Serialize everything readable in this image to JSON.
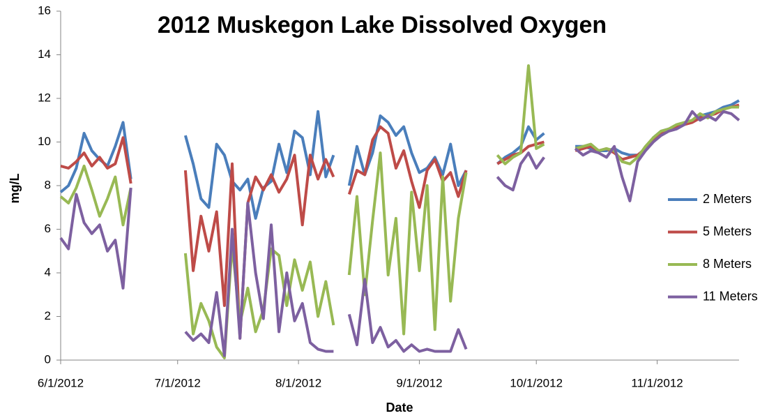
{
  "chart_data": {
    "type": "line",
    "title": "2012 Muskegon Lake Dissolved Oxygen",
    "x_label": "Date",
    "y_label": "mg/L",
    "x": [
      "6/1/2012",
      "6/3/2012",
      "6/5/2012",
      "6/7/2012",
      "6/9/2012",
      "6/11/2012",
      "6/13/2012",
      "6/15/2012",
      "6/17/2012",
      "6/19/2012",
      "6/21/2012",
      "6/23/2012",
      "6/25/2012",
      "6/27/2012",
      "6/29/2012",
      "7/1/2012",
      "7/3/2012",
      "7/5/2012",
      "7/7/2012",
      "7/9/2012",
      "7/11/2012",
      "7/13/2012",
      "7/15/2012",
      "7/17/2012",
      "7/19/2012",
      "7/21/2012",
      "7/23/2012",
      "7/25/2012",
      "7/27/2012",
      "7/29/2012",
      "7/31/2012",
      "8/2/2012",
      "8/4/2012",
      "8/6/2012",
      "8/8/2012",
      "8/10/2012",
      "8/12/2012",
      "8/14/2012",
      "8/16/2012",
      "8/18/2012",
      "8/20/2012",
      "8/22/2012",
      "8/24/2012",
      "8/26/2012",
      "8/28/2012",
      "8/30/2012",
      "9/1/2012",
      "9/3/2012",
      "9/5/2012",
      "9/7/2012",
      "9/9/2012",
      "9/11/2012",
      "9/13/2012",
      "9/15/2012",
      "9/17/2012",
      "9/19/2012",
      "9/21/2012",
      "9/23/2012",
      "9/25/2012",
      "9/27/2012",
      "9/29/2012",
      "10/1/2012",
      "10/3/2012",
      "10/5/2012",
      "10/7/2012",
      "10/9/2012",
      "10/11/2012",
      "10/13/2012",
      "10/15/2012",
      "10/17/2012",
      "10/19/2012",
      "10/21/2012",
      "10/23/2012",
      "10/25/2012",
      "10/27/2012",
      "10/29/2012",
      "10/31/2012",
      "11/2/2012",
      "11/4/2012",
      "11/6/2012",
      "11/8/2012",
      "11/10/2012",
      "11/12/2012",
      "11/14/2012",
      "11/16/2012",
      "11/18/2012",
      "11/20/2012",
      "11/22/2012"
    ],
    "series": [
      {
        "name": "2 Meters",
        "color": "#4a7ebb",
        "values": [
          7.7,
          8.0,
          8.8,
          10.4,
          9.6,
          9.2,
          8.9,
          9.8,
          10.9,
          8.3,
          null,
          null,
          null,
          null,
          null,
          null,
          10.3,
          9.0,
          7.4,
          7.0,
          9.9,
          9.4,
          8.2,
          7.8,
          8.3,
          6.5,
          7.9,
          8.2,
          9.9,
          8.6,
          10.5,
          10.2,
          8.5,
          11.4,
          8.4,
          9.4,
          null,
          8.0,
          9.8,
          8.5,
          9.5,
          11.2,
          10.9,
          10.3,
          10.7,
          9.5,
          8.6,
          8.8,
          9.3,
          8.5,
          9.9,
          8.0,
          8.7,
          null,
          null,
          null,
          9.0,
          9.3,
          9.5,
          9.8,
          10.7,
          10.1,
          10.4,
          null,
          null,
          null,
          9.8,
          9.8,
          9.7,
          9.6,
          9.6,
          9.7,
          9.5,
          9.4,
          9.4,
          9.7,
          10.2,
          10.5,
          10.6,
          10.7,
          10.8,
          11.0,
          11.2,
          11.3,
          11.4,
          11.6,
          11.7,
          11.9
        ]
      },
      {
        "name": "5 Meters",
        "color": "#be4b48",
        "values": [
          8.9,
          8.8,
          9.1,
          9.5,
          8.9,
          9.3,
          8.8,
          9.0,
          10.2,
          8.1,
          null,
          null,
          null,
          null,
          null,
          null,
          8.7,
          4.1,
          6.6,
          5.0,
          6.8,
          2.5,
          9.0,
          1.0,
          7.2,
          8.4,
          7.8,
          8.5,
          7.7,
          8.3,
          9.4,
          6.2,
          9.4,
          8.3,
          9.2,
          8.4,
          null,
          7.6,
          8.7,
          8.5,
          10.1,
          10.7,
          10.4,
          8.8,
          9.6,
          8.2,
          7.0,
          8.7,
          9.2,
          8.2,
          8.6,
          7.5,
          8.7,
          null,
          null,
          null,
          9.0,
          9.2,
          9.4,
          9.5,
          9.8,
          9.9,
          10.0,
          null,
          null,
          null,
          9.6,
          9.7,
          9.8,
          9.6,
          9.7,
          9.5,
          9.2,
          9.3,
          9.4,
          9.7,
          10.1,
          10.4,
          10.6,
          10.7,
          10.8,
          10.9,
          11.1,
          11.2,
          11.3,
          11.5,
          11.6,
          11.7
        ]
      },
      {
        "name": "8 Meters",
        "color": "#98b954",
        "values": [
          7.5,
          7.2,
          7.9,
          8.9,
          7.8,
          6.6,
          7.4,
          8.4,
          6.2,
          7.9,
          null,
          null,
          null,
          null,
          null,
          null,
          4.9,
          1.2,
          2.6,
          1.8,
          0.6,
          0.1,
          5.3,
          1.7,
          3.3,
          1.3,
          2.3,
          5.1,
          4.8,
          2.5,
          4.6,
          3.2,
          4.5,
          2.0,
          3.6,
          1.6,
          null,
          3.9,
          7.5,
          3.0,
          6.4,
          9.5,
          3.9,
          6.5,
          1.2,
          7.7,
          4.1,
          8.0,
          1.4,
          8.4,
          2.7,
          6.5,
          8.6,
          null,
          null,
          null,
          9.4,
          9.0,
          9.3,
          9.5,
          13.5,
          9.7,
          9.9,
          null,
          null,
          null,
          9.7,
          9.8,
          9.9,
          9.6,
          9.7,
          9.6,
          9.1,
          9.0,
          9.3,
          9.8,
          10.2,
          10.5,
          10.6,
          10.8,
          10.9,
          11.0,
          11.3,
          11.1,
          11.4,
          11.5,
          11.6,
          11.6
        ]
      },
      {
        "name": "11 Meters",
        "color": "#7d60a0",
        "values": [
          5.6,
          5.1,
          7.6,
          6.3,
          5.8,
          6.2,
          5.0,
          5.5,
          3.3,
          7.9,
          null,
          null,
          null,
          null,
          null,
          null,
          1.3,
          0.9,
          1.2,
          0.8,
          3.1,
          0.2,
          6.0,
          1.0,
          7.2,
          4.0,
          1.9,
          6.2,
          1.3,
          4.0,
          1.8,
          2.6,
          0.8,
          0.5,
          0.4,
          0.4,
          null,
          2.1,
          0.7,
          3.7,
          0.8,
          1.5,
          0.6,
          0.9,
          0.4,
          0.7,
          0.4,
          0.5,
          0.4,
          0.4,
          0.4,
          1.4,
          0.5,
          null,
          null,
          null,
          8.4,
          8.0,
          7.8,
          9.0,
          9.5,
          8.8,
          9.3,
          null,
          null,
          null,
          9.7,
          9.4,
          9.6,
          9.5,
          9.3,
          9.8,
          8.4,
          7.3,
          9.1,
          9.6,
          10.0,
          10.3,
          10.5,
          10.6,
          10.8,
          11.4,
          11.0,
          11.2,
          11.0,
          11.4,
          11.3,
          11.0
        ]
      }
    ],
    "xlim": [
      "6/1/2012",
      "11/22/2012"
    ],
    "xticks": [
      "6/1/2012",
      "7/1/2012",
      "8/1/2012",
      "9/1/2012",
      "10/1/2012",
      "11/1/2012"
    ],
    "ylim": [
      0,
      16
    ],
    "yticks": [
      0,
      2,
      4,
      6,
      8,
      10,
      12,
      14,
      16
    ],
    "grid": false,
    "legend": "right"
  }
}
